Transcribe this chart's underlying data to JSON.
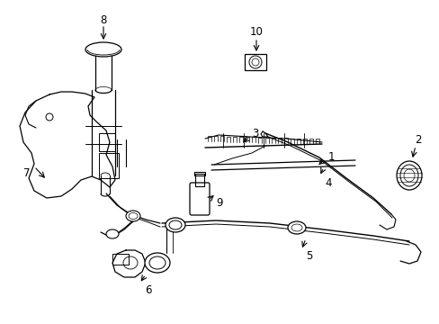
{
  "background_color": "#ffffff",
  "line_color": "#000000",
  "fig_width": 4.89,
  "fig_height": 3.6,
  "dpi": 100,
  "label_fontsize": 8.5
}
